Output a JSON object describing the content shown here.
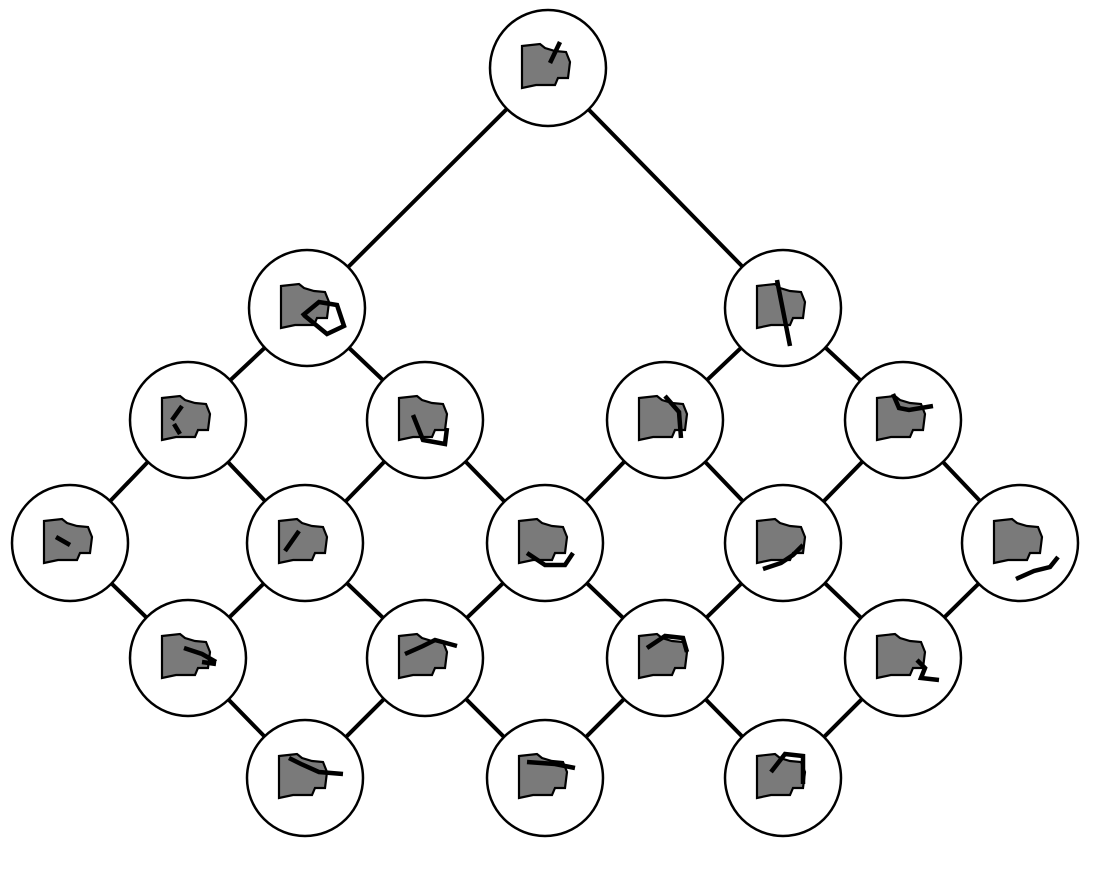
{
  "diagram": {
    "type": "lattice-tree",
    "colors": {
      "background": "#ffffff",
      "edge": "#000000",
      "node_fill": "#ffffff",
      "node_stroke": "#000000",
      "shape_fill": "#7a7a7a",
      "cut_line": "#000000"
    },
    "nodes": [
      {
        "id": "n0",
        "icon": "shape-with-short-diagonal-cut"
      },
      {
        "id": "n1",
        "icon": "shape-with-hook-cut"
      },
      {
        "id": "n2",
        "icon": "shape-with-long-vertical-cut"
      },
      {
        "id": "n3",
        "icon": "shape-with-small-left-cut"
      },
      {
        "id": "n4",
        "icon": "shape-with-u-cut"
      },
      {
        "id": "n5",
        "icon": "shape-with-diagonal-cut"
      },
      {
        "id": "n6",
        "icon": "shape-with-top-arc-cut"
      },
      {
        "id": "n7",
        "icon": "shape-with-short-line-cut"
      },
      {
        "id": "n8",
        "icon": "shape-with-slanted-cut"
      },
      {
        "id": "n9",
        "icon": "shape-with-zigzag-cut"
      },
      {
        "id": "n10",
        "icon": "shape-with-lower-curve-cut"
      },
      {
        "id": "n11",
        "icon": "shape-with-external-line"
      },
      {
        "id": "n12",
        "icon": "shape-with-horizontal-cut"
      },
      {
        "id": "n13",
        "icon": "shape-with-wave-cut"
      },
      {
        "id": "n14",
        "icon": "shape-with-top-loop-cut"
      },
      {
        "id": "n15",
        "icon": "shape-with-bottom-hook-cut"
      },
      {
        "id": "n16",
        "icon": "shape-with-mid-band-cut"
      },
      {
        "id": "n17",
        "icon": "shape-with-top-edge-cut"
      },
      {
        "id": "n18",
        "icon": "shape-with-top-box-cut"
      }
    ],
    "edges": [
      [
        "n0",
        "n1"
      ],
      [
        "n0",
        "n2"
      ],
      [
        "n1",
        "n3"
      ],
      [
        "n1",
        "n4"
      ],
      [
        "n2",
        "n5"
      ],
      [
        "n2",
        "n6"
      ],
      [
        "n3",
        "n7"
      ],
      [
        "n3",
        "n8"
      ],
      [
        "n4",
        "n8"
      ],
      [
        "n4",
        "n9"
      ],
      [
        "n5",
        "n9"
      ],
      [
        "n5",
        "n10"
      ],
      [
        "n6",
        "n10"
      ],
      [
        "n6",
        "n11"
      ],
      [
        "n7",
        "n12"
      ],
      [
        "n8",
        "n12"
      ],
      [
        "n8",
        "n13"
      ],
      [
        "n9",
        "n13"
      ],
      [
        "n9",
        "n14"
      ],
      [
        "n10",
        "n14"
      ],
      [
        "n10",
        "n15"
      ],
      [
        "n11",
        "n15"
      ],
      [
        "n12",
        "n16"
      ],
      [
        "n13",
        "n16"
      ],
      [
        "n13",
        "n17"
      ],
      [
        "n14",
        "n17"
      ],
      [
        "n14",
        "n18"
      ],
      [
        "n15",
        "n18"
      ]
    ]
  }
}
